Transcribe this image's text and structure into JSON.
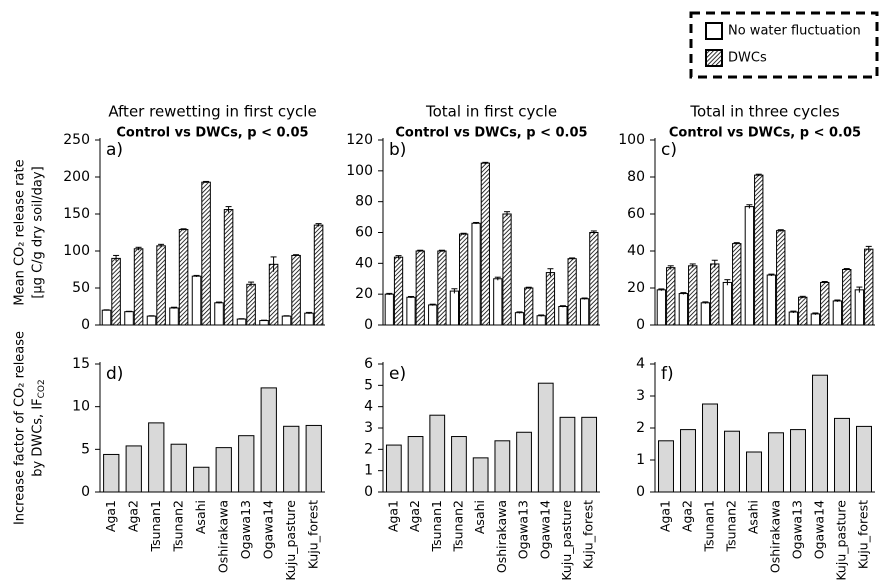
{
  "chart_data": [
    {
      "type": "grouped-bar",
      "title": "After rewetting in first cycle",
      "subtitle": "Control vs DWCs, p < 0.05",
      "panel_label": "a)",
      "ylabel": [
        "Mean CO₂ release rate",
        "[µg C/g dry soil/day]"
      ],
      "ylim": [
        0,
        250
      ],
      "yticks": [
        0,
        50,
        100,
        150,
        200,
        250
      ],
      "series": [
        {
          "name": "No water fluctuation",
          "color": "#ffffff",
          "values": [
            20,
            18,
            12,
            23,
            66,
            30,
            8,
            6,
            12,
            16
          ],
          "errors": [
            0.5,
            0.5,
            0.5,
            1,
            1,
            1,
            0.5,
            0.5,
            0.5,
            1
          ]
        },
        {
          "name": "DWCs",
          "color": "#000000",
          "pattern": "hatch",
          "values": [
            90,
            103,
            107,
            129,
            193,
            156,
            55,
            82,
            94,
            135
          ],
          "errors": [
            4,
            2,
            2,
            1,
            1,
            4,
            3,
            10,
            1,
            2
          ]
        }
      ]
    },
    {
      "type": "grouped-bar",
      "title": "Total in first cycle",
      "subtitle": "Control vs DWCs, p < 0.05",
      "panel_label": "b)",
      "ylim": [
        0,
        120
      ],
      "yticks": [
        0,
        20,
        40,
        60,
        80,
        100,
        120
      ],
      "series": [
        {
          "color": "#ffffff",
          "values": [
            20,
            18,
            13,
            22,
            66,
            30,
            8,
            6,
            12,
            17
          ],
          "errors": [
            0.5,
            0.5,
            0.5,
            1.5,
            0.5,
            1,
            0.5,
            0.5,
            0.5,
            0.5
          ]
        },
        {
          "color": "#000000",
          "pattern": "hatch",
          "values": [
            44,
            48,
            48,
            59,
            105,
            72,
            24,
            34,
            43,
            60
          ],
          "errors": [
            1,
            0.5,
            0.5,
            0.5,
            0.5,
            1.5,
            0.5,
            2.5,
            0.5,
            1
          ]
        }
      ]
    },
    {
      "type": "grouped-bar",
      "title": "Total in three cycles",
      "subtitle": "Control vs DWCs, p < 0.05",
      "panel_label": "c)",
      "ylim": [
        0,
        100
      ],
      "yticks": [
        0,
        20,
        40,
        60,
        80,
        100
      ],
      "series": [
        {
          "color": "#ffffff",
          "values": [
            19,
            17,
            12,
            23,
            64,
            27,
            7,
            6,
            13,
            19
          ],
          "errors": [
            0.5,
            0.5,
            0.5,
            1.5,
            1,
            0.5,
            0.5,
            0.5,
            0.5,
            1.5
          ]
        },
        {
          "color": "#000000",
          "pattern": "hatch",
          "values": [
            31,
            32,
            33,
            44,
            81,
            51,
            15,
            23,
            30,
            41
          ],
          "errors": [
            1,
            1,
            2,
            0.5,
            0.5,
            0.5,
            0.5,
            0.5,
            0.5,
            1.5
          ]
        }
      ]
    },
    {
      "type": "bar",
      "panel_label": "d)",
      "ylabel": [
        "Increase factor of CO₂ release",
        "by DWCs, IF"
      ],
      "ylabel_sub": "CO2",
      "categories": [
        "Aga1",
        "Aga2",
        "Tsunan1",
        "Tsunan2",
        "Asahi",
        "Oshirakawa",
        "Ogawa13",
        "Ogawa14",
        "Kuju_pasture",
        "Kuju_forest"
      ],
      "values": [
        4.4,
        5.4,
        8.1,
        5.6,
        2.9,
        5.2,
        6.6,
        12.2,
        7.7,
        7.8
      ],
      "color": "#d9d9d9",
      "ylim": [
        0,
        15
      ],
      "yticks": [
        0,
        5,
        10,
        15
      ]
    },
    {
      "type": "bar",
      "panel_label": "e)",
      "categories": [
        "Aga1",
        "Aga2",
        "Tsunan1",
        "Tsunan2",
        "Asahi",
        "Oshirakawa",
        "Ogawa13",
        "Ogawa14",
        "Kuju_pasture",
        "Kuju_forest"
      ],
      "values": [
        2.2,
        2.6,
        3.6,
        2.6,
        1.6,
        2.4,
        2.8,
        5.1,
        3.5,
        3.5
      ],
      "color": "#d9d9d9",
      "ylim": [
        0,
        6
      ],
      "yticks": [
        0,
        1,
        2,
        3,
        4,
        5,
        6
      ]
    },
    {
      "type": "bar",
      "panel_label": "f)",
      "categories": [
        "Aga1",
        "Aga2",
        "Tsunan1",
        "Tsunan2",
        "Asahi",
        "Oshirakawa",
        "Ogawa13",
        "Ogawa14",
        "Kuju_pasture",
        "Kuju_forest"
      ],
      "values": [
        1.6,
        1.95,
        2.75,
        1.9,
        1.25,
        1.85,
        1.95,
        3.65,
        2.3,
        2.05
      ],
      "color": "#d9d9d9",
      "ylim": [
        0,
        4
      ],
      "yticks": [
        0,
        1,
        2,
        3,
        4
      ]
    }
  ]
}
